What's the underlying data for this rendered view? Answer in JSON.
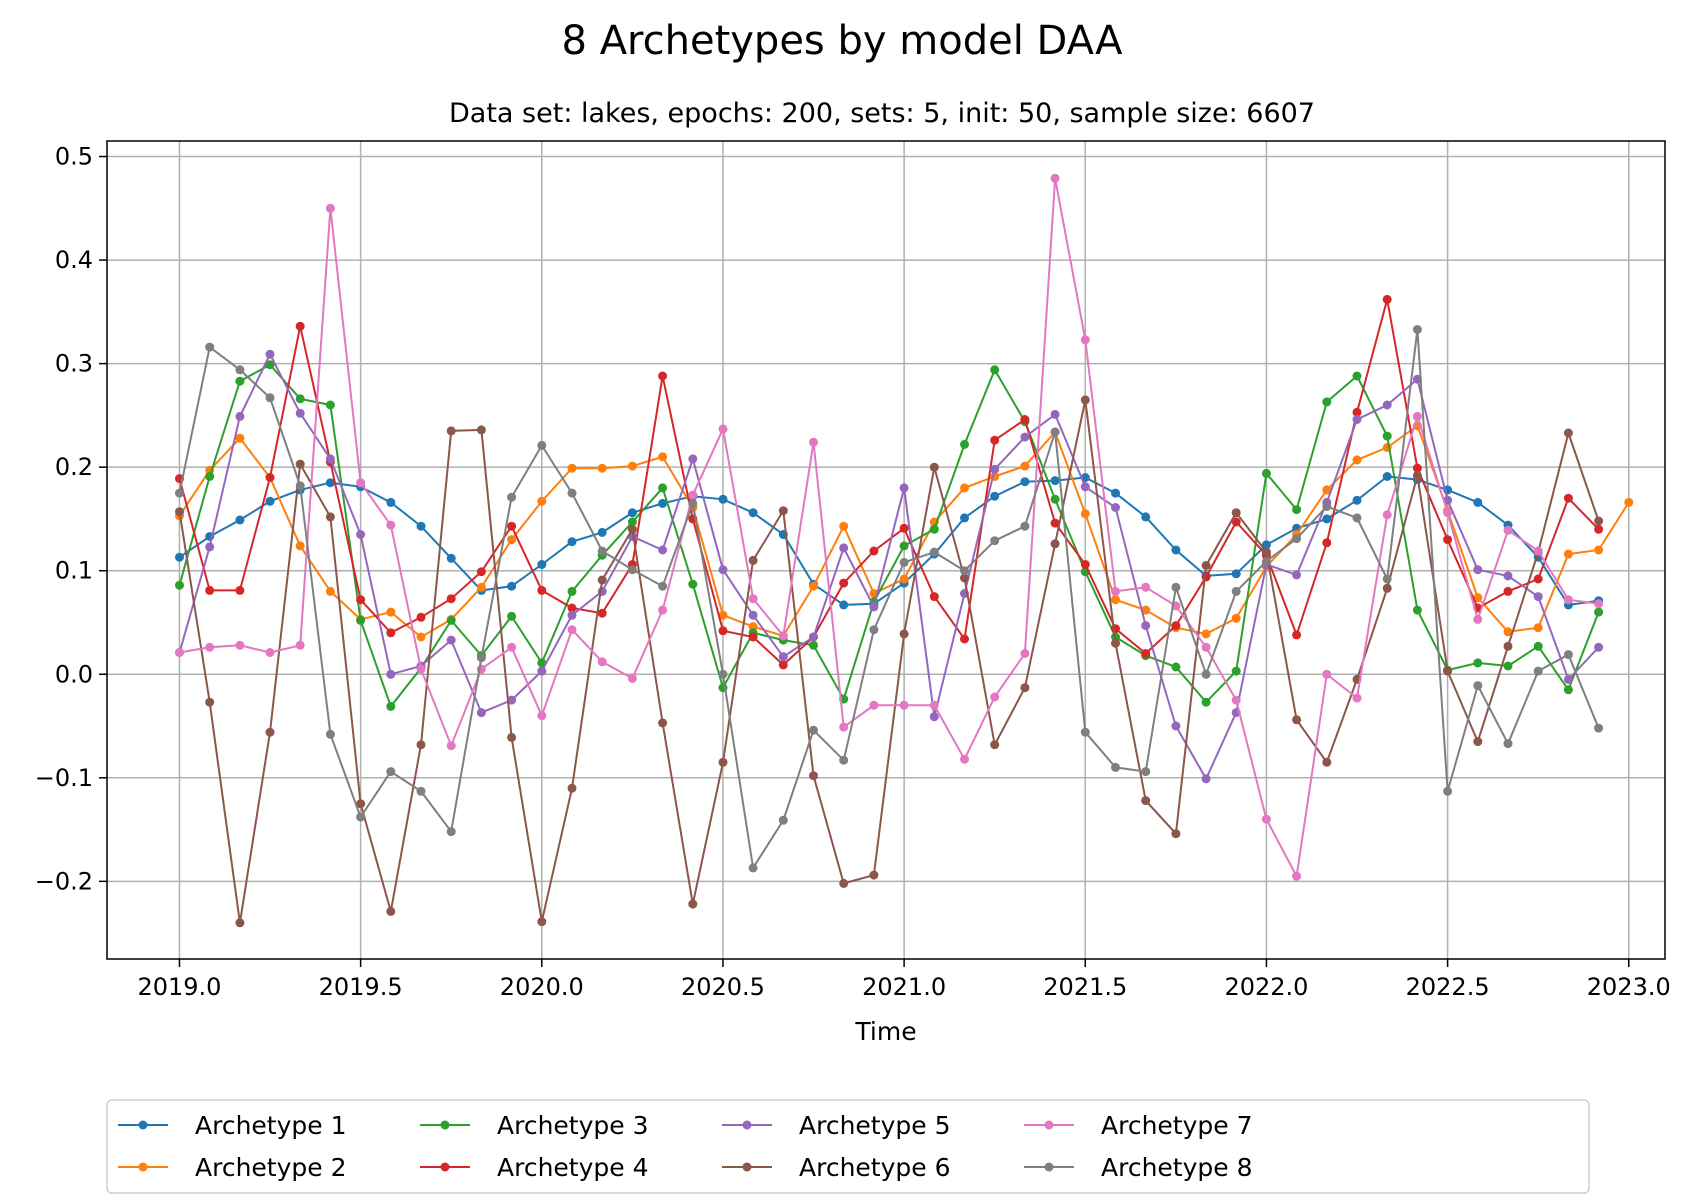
{
  "chart_data": {
    "type": "line",
    "title": "8 Archetypes by model DAA",
    "subtitle": "Data set: lakes, epochs: 200, sets: 5, init: 50, sample size: 6607",
    "xlabel": "Time",
    "ylabel": "",
    "xlim": [
      2018.8,
      2023.1
    ],
    "ylim": [
      -0.275,
      0.515
    ],
    "xticks": [
      2019.0,
      2019.5,
      2020.0,
      2020.5,
      2021.0,
      2021.5,
      2022.0,
      2022.5,
      2023.0
    ],
    "xtick_labels": [
      "2019.0",
      "2019.5",
      "2020.0",
      "2020.5",
      "2021.0",
      "2021.5",
      "2022.0",
      "2022.5",
      "2023.0"
    ],
    "yticks": [
      -0.2,
      -0.1,
      0.0,
      0.1,
      0.2,
      0.3,
      0.4,
      0.5
    ],
    "ytick_labels": [
      "−0.2",
      "−0.1",
      "0.0",
      "0.1",
      "0.2",
      "0.3",
      "0.4",
      "0.5"
    ],
    "grid": true,
    "legend_position": "bottom-center",
    "x_start": 2019.0,
    "x_step": 0.0833333,
    "series": [
      {
        "name": "Archetype 1",
        "color": "#1f77b4",
        "values": [
          0.113,
          0.133,
          0.149,
          0.167,
          0.178,
          0.185,
          0.181,
          0.166,
          0.143,
          0.112,
          0.081,
          0.085,
          0.106,
          0.128,
          0.137,
          0.156,
          0.165,
          0.172,
          0.169,
          0.156,
          0.135,
          0.087,
          0.067,
          0.068,
          0.088,
          0.116,
          0.151,
          0.172,
          0.186,
          0.187,
          0.19,
          0.175,
          0.152,
          0.12,
          0.095,
          0.097,
          0.125,
          0.141,
          0.15,
          0.168,
          0.191,
          0.188,
          0.178,
          0.166,
          0.144,
          0.113,
          0.067,
          0.071
        ]
      },
      {
        "name": "Archetype 2",
        "color": "#ff7f0e",
        "values": [
          0.153,
          0.197,
          0.228,
          0.19,
          0.124,
          0.08,
          0.053,
          0.06,
          0.036,
          0.053,
          0.084,
          0.13,
          0.167,
          0.199,
          0.199,
          0.201,
          0.21,
          0.161,
          0.057,
          0.046,
          0.037,
          0.085,
          0.143,
          0.078,
          0.092,
          0.147,
          0.18,
          0.191,
          0.201,
          0.234,
          0.155,
          0.072,
          0.062,
          0.045,
          0.039,
          0.054,
          0.104,
          0.135,
          0.178,
          0.207,
          0.219,
          0.24,
          0.158,
          0.074,
          0.041,
          0.045,
          0.116,
          0.12,
          0.166
        ]
      },
      {
        "name": "Archetype 3",
        "color": "#2ca02c",
        "values": [
          0.086,
          0.191,
          0.283,
          0.299,
          0.266,
          0.26,
          0.052,
          -0.031,
          0.006,
          0.052,
          0.018,
          0.056,
          0.011,
          0.08,
          0.115,
          0.147,
          0.18,
          0.087,
          -0.013,
          0.04,
          0.033,
          0.028,
          -0.024,
          0.07,
          0.124,
          0.14,
          0.222,
          0.294,
          0.244,
          0.169,
          0.099,
          0.036,
          0.018,
          0.007,
          -0.027,
          0.003,
          0.194,
          0.159,
          0.263,
          0.288,
          0.23,
          0.062,
          0.004,
          0.011,
          0.008,
          0.027,
          -0.015,
          0.06
        ]
      },
      {
        "name": "Archetype 4",
        "color": "#d62728",
        "values": [
          0.189,
          0.081,
          0.081,
          0.19,
          0.336,
          0.205,
          0.072,
          0.04,
          0.055,
          0.073,
          0.099,
          0.143,
          0.081,
          0.064,
          0.059,
          0.106,
          0.288,
          0.15,
          0.042,
          0.036,
          0.009,
          0.036,
          0.088,
          0.119,
          0.141,
          0.075,
          0.034,
          0.226,
          0.246,
          0.146,
          0.106,
          0.044,
          0.02,
          0.047,
          0.094,
          0.147,
          0.115,
          0.038,
          0.127,
          0.253,
          0.362,
          0.199,
          0.13,
          0.064,
          0.08,
          0.092,
          0.17,
          0.14
        ]
      },
      {
        "name": "Archetype 5",
        "color": "#9467bd",
        "values": [
          0.021,
          0.123,
          0.249,
          0.309,
          0.252,
          0.208,
          0.135,
          0.0,
          0.008,
          0.033,
          -0.037,
          -0.025,
          0.003,
          0.057,
          0.08,
          0.133,
          0.12,
          0.208,
          0.101,
          0.057,
          0.017,
          0.036,
          0.122,
          0.065,
          0.18,
          -0.041,
          0.078,
          0.198,
          0.229,
          0.251,
          0.181,
          0.161,
          0.047,
          -0.05,
          -0.101,
          -0.037,
          0.106,
          0.096,
          0.166,
          0.246,
          0.26,
          0.285,
          0.168,
          0.101,
          0.095,
          0.075,
          -0.005,
          0.026
        ]
      },
      {
        "name": "Archetype 6",
        "color": "#8c564b",
        "values": [
          0.157,
          -0.027,
          -0.24,
          -0.056,
          0.203,
          0.152,
          -0.125,
          -0.229,
          -0.068,
          0.235,
          0.236,
          -0.061,
          -0.239,
          -0.11,
          0.091,
          0.14,
          -0.047,
          -0.222,
          -0.085,
          0.11,
          0.158,
          -0.098,
          -0.202,
          -0.194,
          0.039,
          0.2,
          0.093,
          -0.068,
          -0.013,
          0.126,
          0.265,
          0.03,
          -0.122,
          -0.154,
          0.105,
          0.156,
          0.118,
          -0.044,
          -0.085,
          -0.005,
          0.083,
          0.192,
          0.003,
          -0.065,
          0.027,
          0.118,
          0.233,
          0.148
        ]
      },
      {
        "name": "Archetype 7",
        "color": "#e377c2",
        "values": [
          0.021,
          0.026,
          0.028,
          0.021,
          0.028,
          0.45,
          0.185,
          0.144,
          0.005,
          -0.069,
          0.005,
          0.026,
          -0.04,
          0.043,
          0.012,
          -0.004,
          0.062,
          0.173,
          0.237,
          0.073,
          0.037,
          0.224,
          -0.051,
          -0.03,
          -0.03,
          -0.03,
          -0.082,
          -0.022,
          0.02,
          0.479,
          0.323,
          0.08,
          0.084,
          0.066,
          0.026,
          -0.025,
          -0.14,
          -0.195,
          0.0,
          -0.023,
          0.154,
          0.249,
          0.156,
          0.053,
          0.139,
          0.119,
          0.072,
          0.068
        ]
      },
      {
        "name": "Archetype 8",
        "color": "#7f7f7f",
        "values": [
          0.175,
          0.316,
          0.294,
          0.267,
          0.182,
          -0.058,
          -0.138,
          -0.094,
          -0.113,
          -0.152,
          0.016,
          0.171,
          0.221,
          0.175,
          0.119,
          0.101,
          0.085,
          0.165,
          0.0,
          -0.187,
          -0.141,
          -0.054,
          -0.083,
          0.043,
          0.108,
          0.118,
          0.1,
          0.129,
          0.143,
          0.234,
          -0.056,
          -0.09,
          -0.094,
          0.084,
          0.0,
          0.08,
          0.109,
          0.131,
          0.162,
          0.151,
          0.092,
          0.333,
          -0.113,
          -0.011,
          -0.067,
          0.003,
          0.019,
          -0.052
        ]
      }
    ]
  }
}
